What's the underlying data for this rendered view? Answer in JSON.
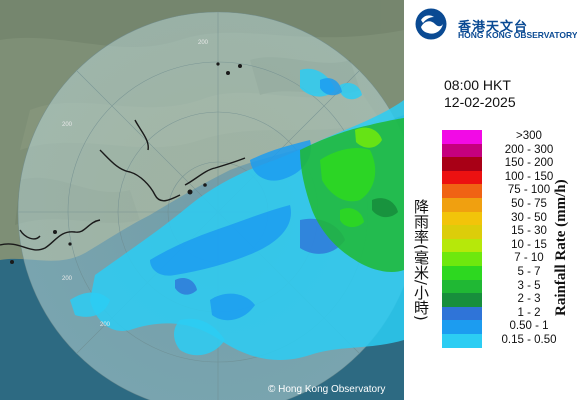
{
  "logo": {
    "name_cn": "香港天文台",
    "name_en": "HONG KONG OBSERVATORY"
  },
  "radar": {
    "time": "08:00 HKT",
    "date": "12-02-2025",
    "range_ring_labels": [
      "200",
      "200",
      "200",
      "200"
    ],
    "copyright": "© Hong Kong Observatory"
  },
  "legend": {
    "title_cn": "降雨率(毫米/小時)",
    "title_en": "Rainfall Rate (mm/h)",
    "items": [
      {
        "label": ">300",
        "color": "#f20ae6"
      },
      {
        "label": "200 - 300",
        "color": "#c5007e"
      },
      {
        "label": "150 - 200",
        "color": "#a80016"
      },
      {
        "label": "100 - 150",
        "color": "#ec1111"
      },
      {
        "label": "75 - 100",
        "color": "#f06314"
      },
      {
        "label": "50 - 75",
        "color": "#f0a010"
      },
      {
        "label": "30 - 50",
        "color": "#f2c40a"
      },
      {
        "label": "15 - 30",
        "color": "#dccd0a"
      },
      {
        "label": "10 - 15",
        "color": "#b6e80a"
      },
      {
        "label": "7 - 10",
        "color": "#6ee80e"
      },
      {
        "label": "5 - 7",
        "color": "#2dd820"
      },
      {
        "label": "3 - 5",
        "color": "#20b834"
      },
      {
        "label": "2 - 3",
        "color": "#178f3c"
      },
      {
        "label": "1 - 2",
        "color": "#2f74d8"
      },
      {
        "label": "0.50 - 1",
        "color": "#1c9cf0"
      },
      {
        "label": "0.15 - 0.50",
        "color": "#2ccdf3"
      }
    ]
  },
  "colors": {
    "land": "#7c8c74",
    "sea": "#2d6a82",
    "radar_disc": "#9fc4c6",
    "hk_blue": "#0a4a93"
  }
}
